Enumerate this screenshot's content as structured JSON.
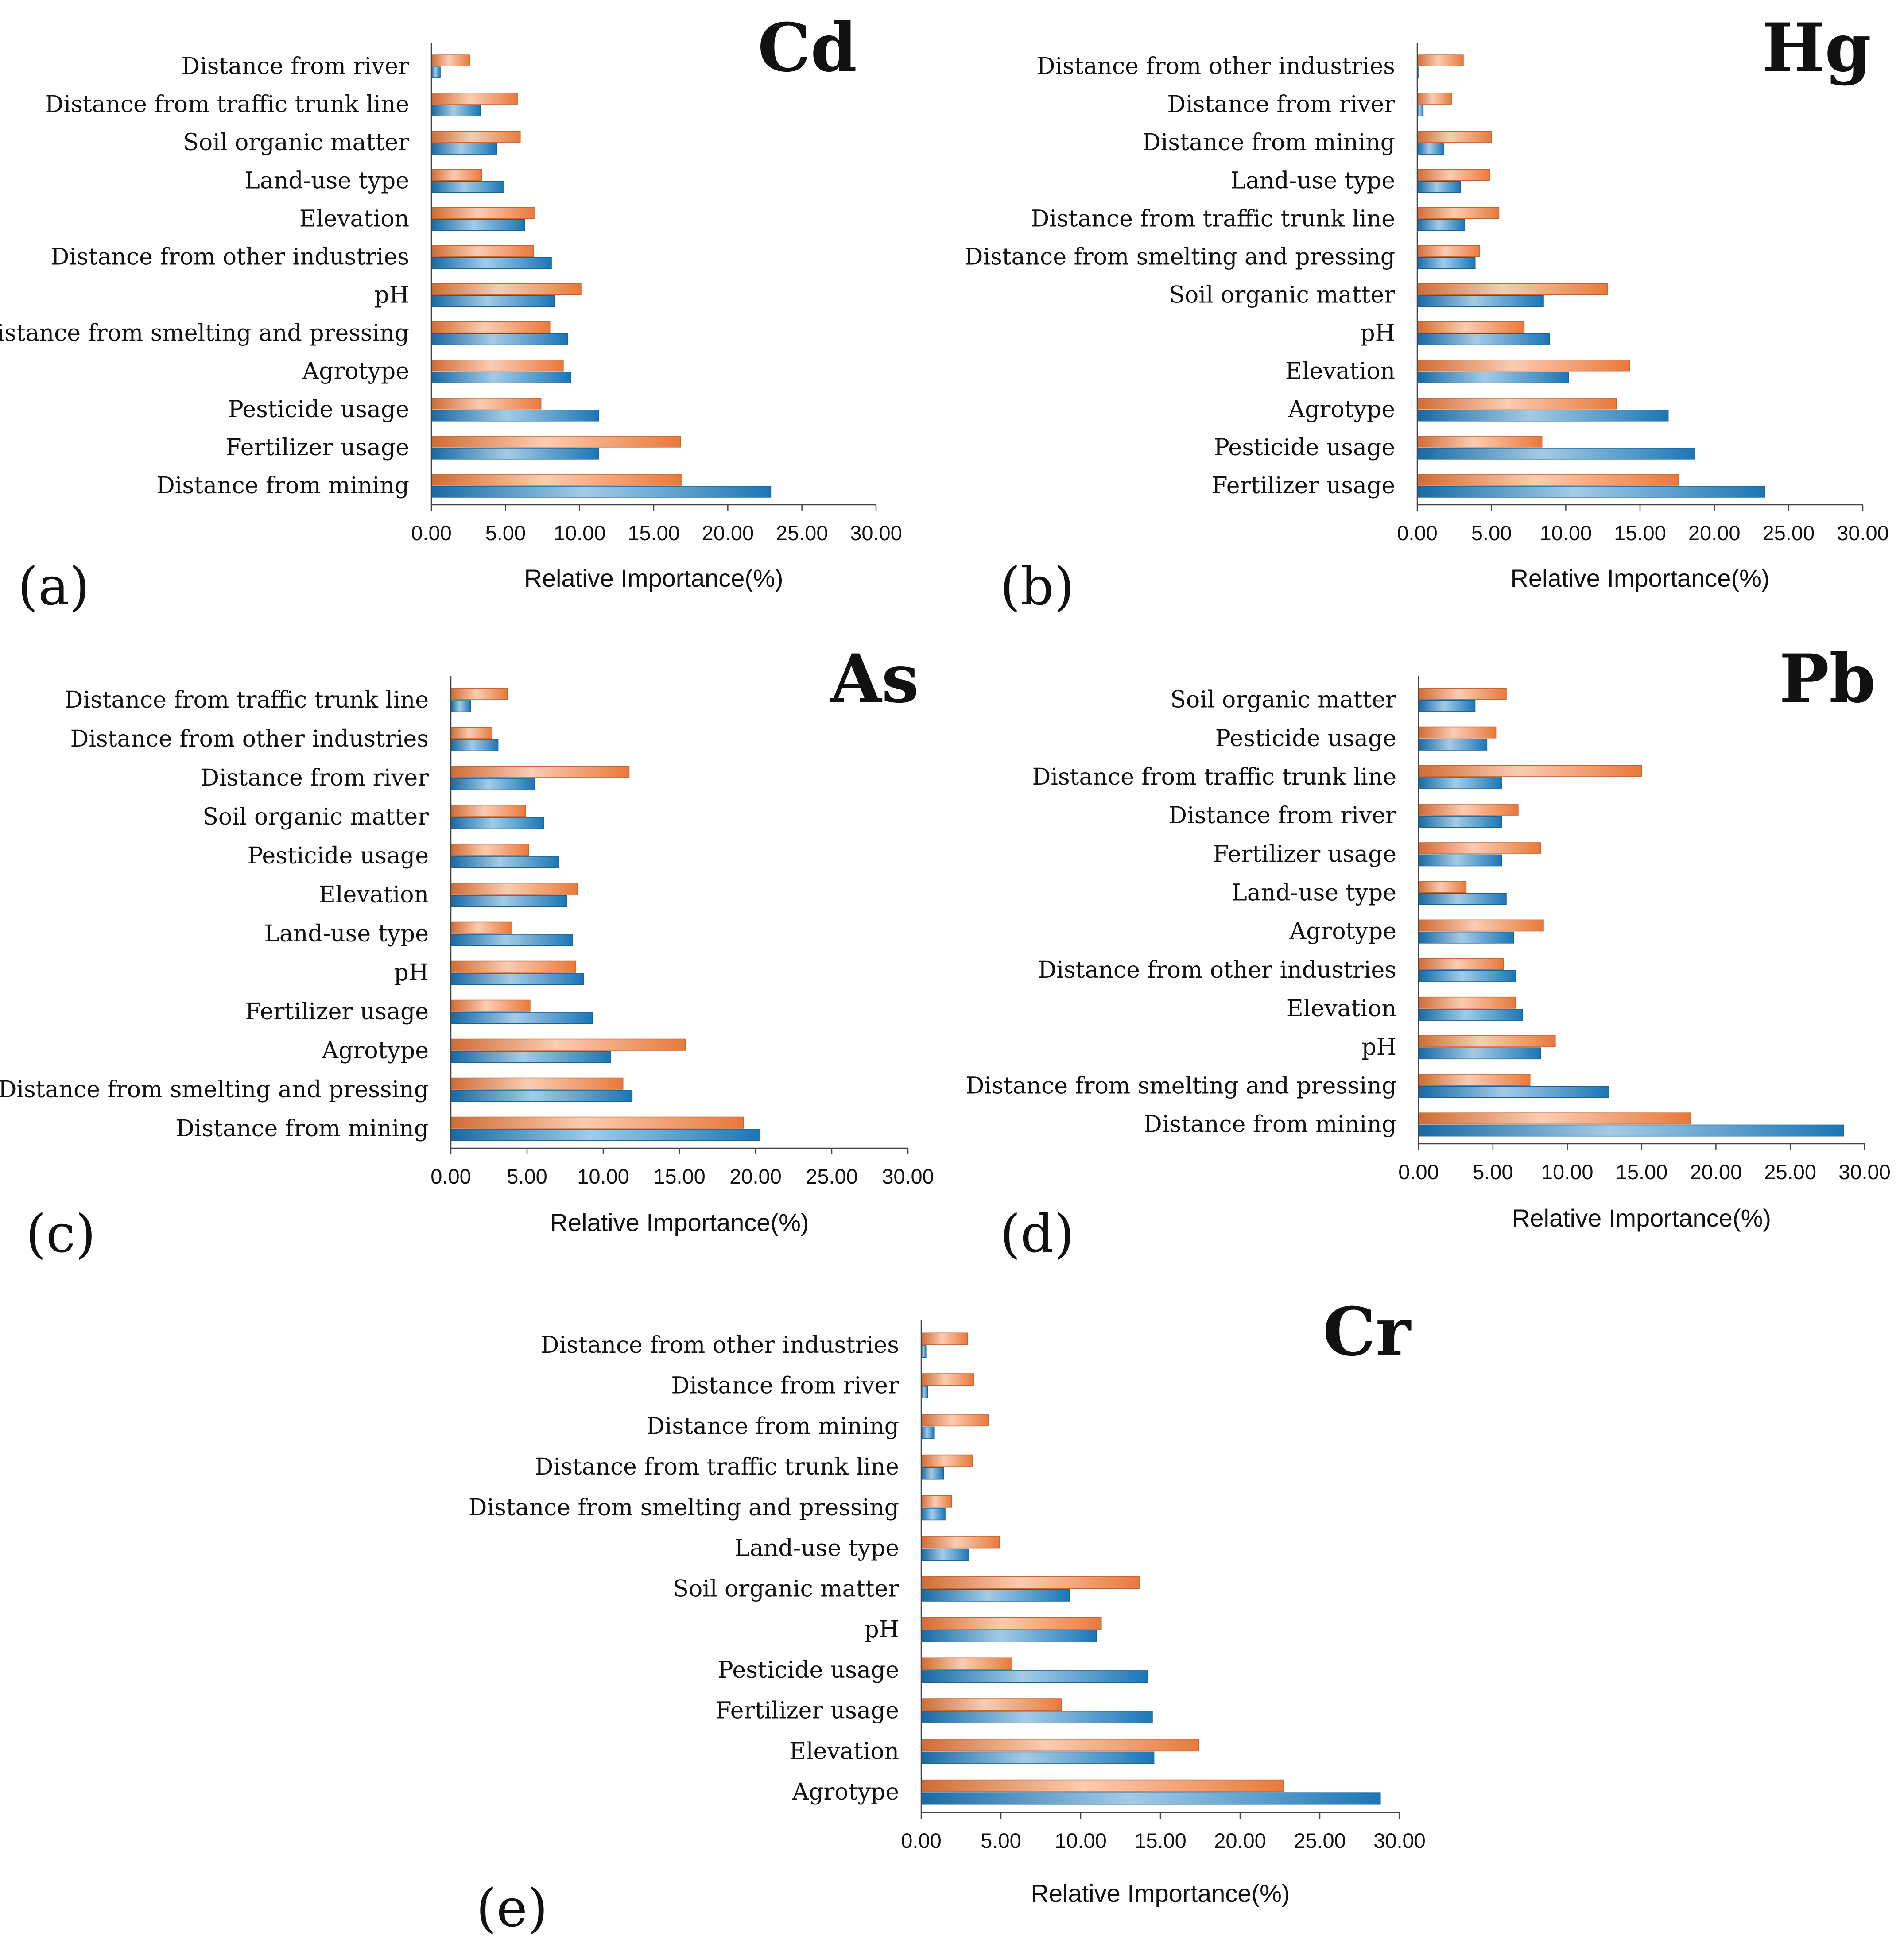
{
  "figure": {
    "background": "#ffffff"
  },
  "colors": {
    "series_a": "#f47f3e",
    "series_b": "#1b7cc0",
    "axis": "#444444"
  },
  "chart_data": [
    {
      "type": "bar",
      "orientation": "horizontal",
      "title": "Cd",
      "panel_label": "(a)",
      "xlabel": "Relative Importance(%)",
      "xlim": [
        0,
        30
      ],
      "xticks": [
        "0.00",
        "5.00",
        "10.00",
        "15.00",
        "20.00",
        "25.00",
        "30.00"
      ],
      "grid": false,
      "categories": [
        "Distance from river",
        "Distance from traffic trunk line",
        "Soil organic matter",
        "Land-use type",
        "Elevation",
        "Distance from other industries",
        "pH",
        "Distance from smelting and pressing",
        "Agrotype",
        "Pesticide usage",
        "Fertilizer usage",
        "Distance from mining"
      ],
      "series": [
        {
          "color": "#f47f3e",
          "values": [
            2.6,
            5.8,
            6.0,
            3.4,
            7.0,
            6.9,
            10.1,
            8.0,
            8.9,
            7.4,
            16.8,
            16.9
          ]
        },
        {
          "color": "#1b7cc0",
          "values": [
            0.6,
            3.3,
            4.4,
            4.9,
            6.3,
            8.1,
            8.3,
            9.2,
            9.4,
            11.3,
            11.3,
            22.9
          ]
        }
      ]
    },
    {
      "type": "bar",
      "orientation": "horizontal",
      "title": "Hg",
      "panel_label": "(b)",
      "xlabel": "Relative Importance(%)",
      "xlim": [
        0,
        30
      ],
      "xticks": [
        "0.00",
        "5.00",
        "10.00",
        "15.00",
        "20.00",
        "25.00",
        "30.00"
      ],
      "grid": false,
      "categories": [
        "Distance from other industries",
        "Distance from river",
        "Distance from mining",
        "Land-use type",
        "Distance from traffic trunk line",
        "Distance from smelting and pressing",
        "Soil organic matter",
        "pH",
        "Elevation",
        "Agrotype",
        "Pesticide usage",
        "Fertilizer usage"
      ],
      "series": [
        {
          "color": "#f47f3e",
          "values": [
            3.1,
            2.3,
            5.0,
            4.9,
            5.5,
            4.2,
            12.8,
            7.2,
            14.3,
            13.4,
            8.4,
            17.6
          ]
        },
        {
          "color": "#1b7cc0",
          "values": [
            0.1,
            0.4,
            1.8,
            2.9,
            3.2,
            3.9,
            8.5,
            8.9,
            10.2,
            16.9,
            18.7,
            23.4
          ]
        }
      ]
    },
    {
      "type": "bar",
      "orientation": "horizontal",
      "title": "As",
      "panel_label": "(c)",
      "xlabel": "Relative Importance(%)",
      "xlim": [
        0,
        30
      ],
      "xticks": [
        "0.00",
        "5.00",
        "10.00",
        "15.00",
        "20.00",
        "25.00",
        "30.00"
      ],
      "grid": false,
      "categories": [
        "Distance from traffic trunk line",
        "Distance from other industries",
        "Distance from river",
        "Soil organic matter",
        "Pesticide usage",
        "Elevation",
        "Land-use type",
        "pH",
        "Fertilizer usage",
        "Agrotype",
        "Distance from smelting and pressing",
        "Distance from mining"
      ],
      "series": [
        {
          "color": "#f47f3e",
          "values": [
            3.7,
            2.7,
            11.7,
            4.9,
            5.1,
            8.3,
            4.0,
            8.2,
            5.2,
            15.4,
            11.3,
            19.2
          ]
        },
        {
          "color": "#1b7cc0",
          "values": [
            1.3,
            3.1,
            5.5,
            6.1,
            7.1,
            7.6,
            8.0,
            8.7,
            9.3,
            10.5,
            11.9,
            20.3
          ]
        }
      ]
    },
    {
      "type": "bar",
      "orientation": "horizontal",
      "title": "Pb",
      "panel_label": "(d)",
      "xlabel": "Relative Importance(%)",
      "xlim": [
        0,
        30
      ],
      "xticks": [
        "0.00",
        "5.00",
        "10.00",
        "15.00",
        "20.00",
        "25.00",
        "30.00"
      ],
      "grid": false,
      "categories": [
        "Soil organic matter",
        "Pesticide usage",
        "Distance from traffic trunk line",
        "Distance from river",
        "Fertilizer usage",
        "Land-use type",
        "Agrotype",
        "Distance from other industries",
        "Elevation",
        "pH",
        "Distance from smelting and pressing",
        "Distance from mining"
      ],
      "series": [
        {
          "color": "#f47f3e",
          "values": [
            5.9,
            5.2,
            15.0,
            6.7,
            8.2,
            3.2,
            8.4,
            5.7,
            6.5,
            9.2,
            7.5,
            18.3
          ]
        },
        {
          "color": "#1b7cc0",
          "values": [
            3.8,
            4.6,
            5.6,
            5.6,
            5.6,
            5.9,
            6.4,
            6.5,
            7.0,
            8.2,
            12.8,
            28.6
          ]
        }
      ]
    },
    {
      "type": "bar",
      "orientation": "horizontal",
      "title": "Cr",
      "panel_label": "(e)",
      "xlabel": "Relative Importance(%)",
      "xlim": [
        0,
        30
      ],
      "xticks": [
        "0.00",
        "5.00",
        "10.00",
        "15.00",
        "20.00",
        "25.00",
        "30.00"
      ],
      "grid": false,
      "categories": [
        "Distance from other industries",
        "Distance from river",
        "Distance from mining",
        "Distance from traffic trunk line",
        "Distance from smelting and pressing",
        "Land-use type",
        "Soil organic matter",
        "pH",
        "Pesticide usage",
        "Fertilizer usage",
        "Elevation",
        "Agrotype"
      ],
      "series": [
        {
          "color": "#f47f3e",
          "values": [
            2.9,
            3.3,
            4.2,
            3.2,
            1.9,
            4.9,
            13.7,
            11.3,
            5.7,
            8.8,
            17.4,
            22.7
          ]
        },
        {
          "color": "#1b7cc0",
          "values": [
            0.3,
            0.4,
            0.8,
            1.4,
            1.5,
            3.0,
            9.3,
            11.0,
            14.2,
            14.5,
            14.6,
            28.8
          ]
        }
      ]
    }
  ]
}
